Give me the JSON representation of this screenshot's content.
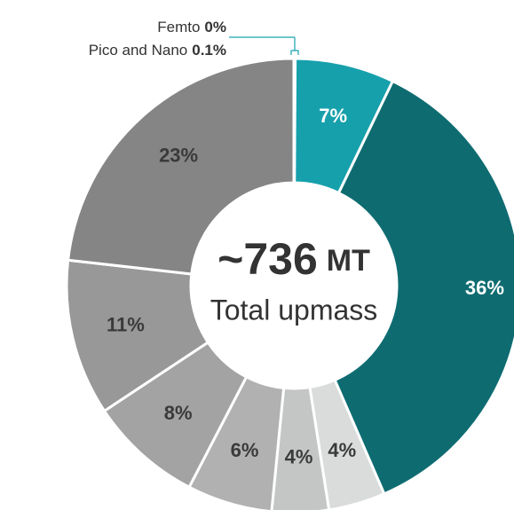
{
  "chart_data": {
    "type": "donut",
    "categories": [
      "Femto",
      "Pico and Nano",
      null,
      null,
      null,
      null,
      null,
      null,
      null,
      null
    ],
    "values": [
      0,
      0.1,
      7,
      36,
      4,
      4,
      6,
      8,
      11,
      23
    ],
    "value_labels": [
      "0%",
      "0.1%",
      "7%",
      "36%",
      "4%",
      "4%",
      "6%",
      "8%",
      "11%",
      "23%"
    ],
    "colors": [
      "#17a2ae",
      "#17a2ae",
      "#16a0ac",
      "#0e6c71",
      "#dadcdc",
      "#c4c6c6",
      "#b1b1b1",
      "#a3a3a3",
      "#989898",
      "#858585"
    ],
    "center_value": "~736",
    "center_unit": "MT",
    "center_label": "Total upmass"
  }
}
